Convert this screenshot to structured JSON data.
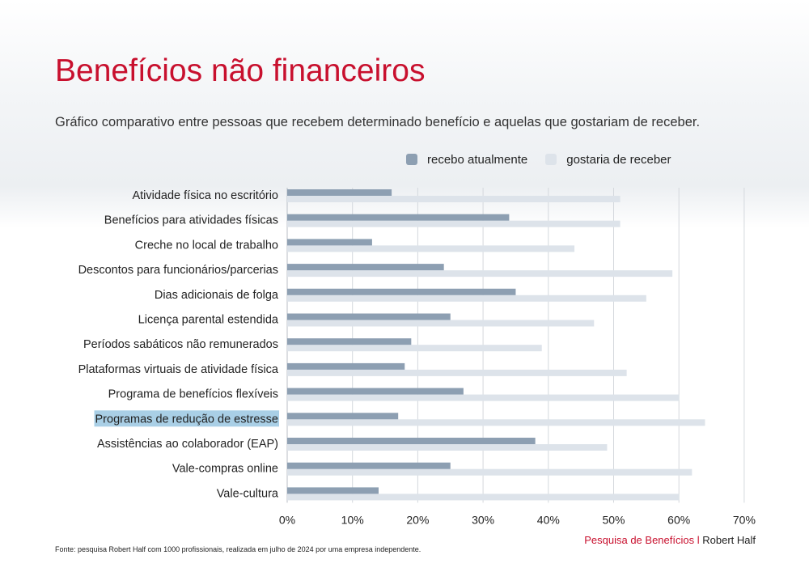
{
  "title": "Benefícios não financeiros",
  "subtitle": "Gráfico comparativo entre pessoas que recebem determinado benefício e aquelas que gostariam de receber.",
  "legend": {
    "current": "recebo atualmente",
    "desired": "gostaria de receber"
  },
  "footnote": "Fonte: pesquisa Robert Half com 1000 profissionais, realizada em julho de 2024 por uma empresa independente.",
  "brand": {
    "survey": "Pesquisa de Benefícios",
    "separator": "l",
    "company": "Robert Half"
  },
  "colors": {
    "title": "#c8102e",
    "current": "#8d9fb2",
    "desired": "#dde3ea",
    "highlight": "#a9cfe6"
  },
  "chart_data": {
    "type": "bar",
    "orientation": "horizontal",
    "categories": [
      "Atividade física no escritório",
      "Benefícios para atividades físicas",
      "Creche no local de trabalho",
      "Descontos para funcionários/parcerias",
      "Dias adicionais de folga",
      "Licença parental estendida",
      "Períodos sabáticos não remunerados",
      "Plataformas virtuais de atividade física",
      "Programa de benefícios flexíveis",
      "Programas de redução de estresse",
      "Assistências ao colaborador (EAP)",
      "Vale-compras online",
      "Vale-cultura"
    ],
    "series": [
      {
        "name": "recebo atualmente",
        "values": [
          16,
          34,
          13,
          24,
          35,
          25,
          19,
          18,
          27,
          17,
          38,
          25,
          14
        ]
      },
      {
        "name": "gostaria de receber",
        "values": [
          51,
          51,
          44,
          59,
          55,
          47,
          39,
          52,
          60,
          64,
          49,
          62,
          60
        ]
      }
    ],
    "highlighted_category": "Programas de redução de estresse",
    "xlim": [
      0,
      70
    ],
    "xticks": [
      "0%",
      "10%",
      "20%",
      "30%",
      "40%",
      "50%",
      "60%",
      "70%"
    ],
    "grid": "vertical",
    "legend_position": "top-right"
  }
}
